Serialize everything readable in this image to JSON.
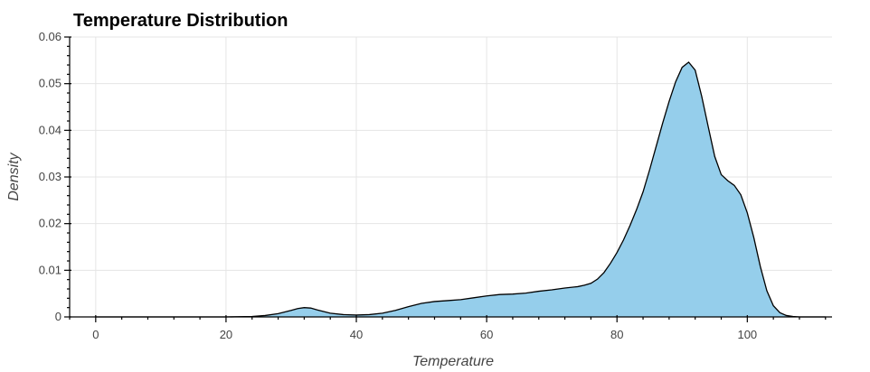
{
  "chart_data": {
    "type": "area",
    "title": "Temperature Distribution",
    "xlabel": "Temperature",
    "ylabel": "Density",
    "xlim": [
      -4,
      113
    ],
    "ylim": [
      0,
      0.06
    ],
    "x_ticks": [
      0,
      20,
      40,
      60,
      80,
      100
    ],
    "y_ticks": [
      0,
      0.01,
      0.02,
      0.03,
      0.04,
      0.05,
      0.06
    ],
    "x_tick_labels": [
      "0",
      "20",
      "40",
      "60",
      "80",
      "100"
    ],
    "y_tick_labels": [
      "0",
      "0.01",
      "0.02",
      "0.03",
      "0.04",
      "0.05",
      "0.06"
    ],
    "grid": true,
    "fill_color": "#95CEEB",
    "line_color": "#000000",
    "series": [
      {
        "x": [
          0,
          20,
          24,
          26,
          28,
          30,
          31,
          32,
          33,
          34,
          36,
          38,
          40,
          42,
          44,
          46,
          48,
          50,
          52,
          54,
          56,
          58,
          60,
          62,
          64,
          66,
          68,
          70,
          72,
          74,
          75,
          76,
          77,
          78,
          79,
          80,
          81,
          82,
          83,
          84,
          85,
          86,
          87,
          88,
          89,
          90,
          91,
          92,
          93,
          94,
          95,
          96,
          97,
          98,
          99,
          100,
          101,
          102,
          103,
          104,
          105,
          106,
          107,
          108,
          110,
          112
        ],
        "y": [
          0,
          0,
          0.0001,
          0.0003,
          0.0007,
          0.0014,
          0.0018,
          0.002,
          0.0019,
          0.0015,
          0.0008,
          0.0005,
          0.0004,
          0.0005,
          0.0008,
          0.0014,
          0.0022,
          0.0029,
          0.0033,
          0.0035,
          0.0037,
          0.0041,
          0.0045,
          0.0048,
          0.0049,
          0.0051,
          0.0055,
          0.0058,
          0.0062,
          0.0065,
          0.0068,
          0.0072,
          0.0081,
          0.0095,
          0.0115,
          0.0138,
          0.0165,
          0.0196,
          0.023,
          0.0268,
          0.0315,
          0.0365,
          0.0415,
          0.0462,
          0.0504,
          0.0535,
          0.0546,
          0.0529,
          0.0473,
          0.0408,
          0.0344,
          0.0305,
          0.0292,
          0.0282,
          0.0262,
          0.0223,
          0.017,
          0.0108,
          0.0056,
          0.0024,
          0.0009,
          0.0003,
          0.0001,
          0,
          0,
          0
        ]
      }
    ]
  }
}
